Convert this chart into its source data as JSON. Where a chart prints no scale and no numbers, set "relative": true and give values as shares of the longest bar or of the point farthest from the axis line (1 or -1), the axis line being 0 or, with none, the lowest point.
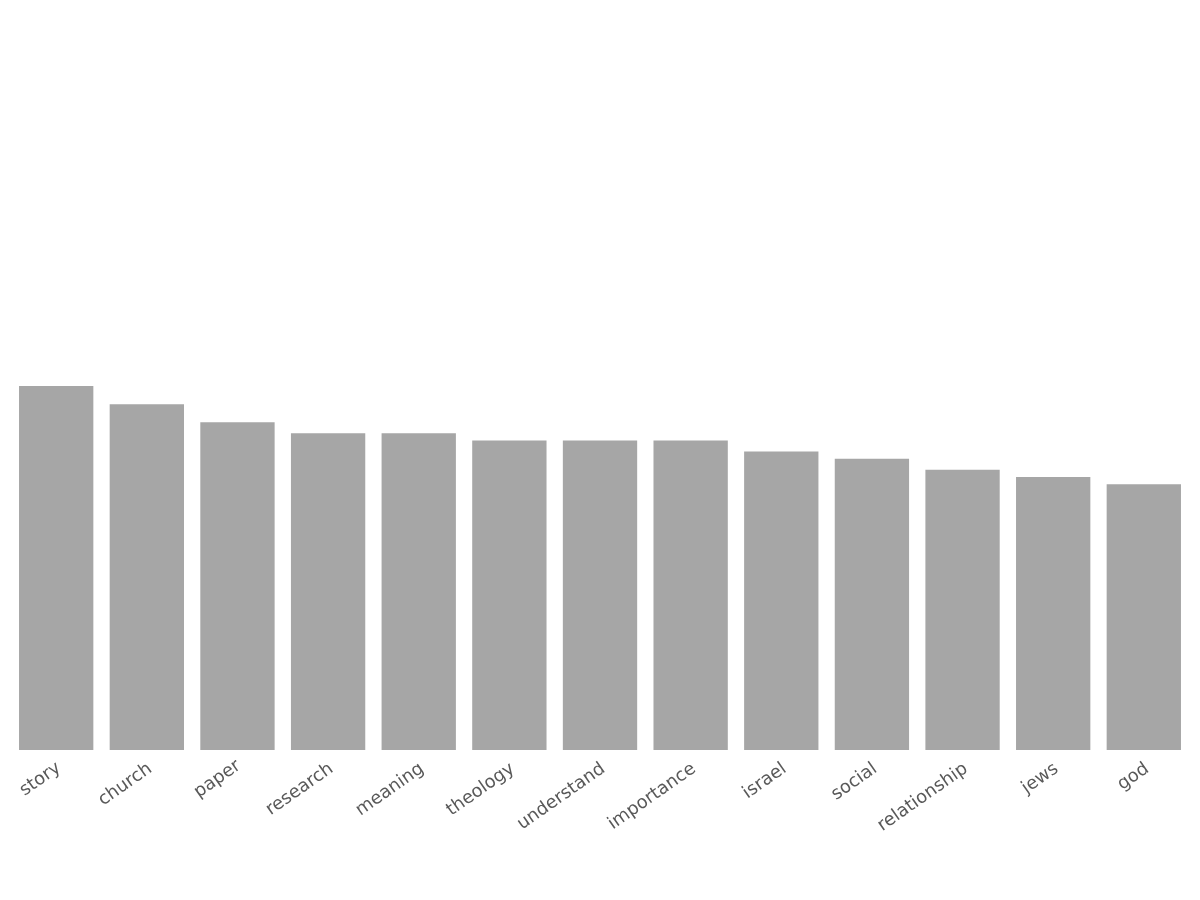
{
  "chart_data": {
    "type": "bar",
    "relative": true,
    "color": "#a6a6a6",
    "categories": [
      "story",
      "church",
      "paper",
      "research",
      "meaning",
      "theology",
      "understand",
      "importance",
      "israel",
      "social",
      "relationship",
      "jews",
      "god"
    ],
    "values": [
      1,
      0.95,
      0.9,
      0.87,
      0.87,
      0.85,
      0.85,
      0.85,
      0.82,
      0.8,
      0.77,
      0.75,
      0.73
    ]
  }
}
